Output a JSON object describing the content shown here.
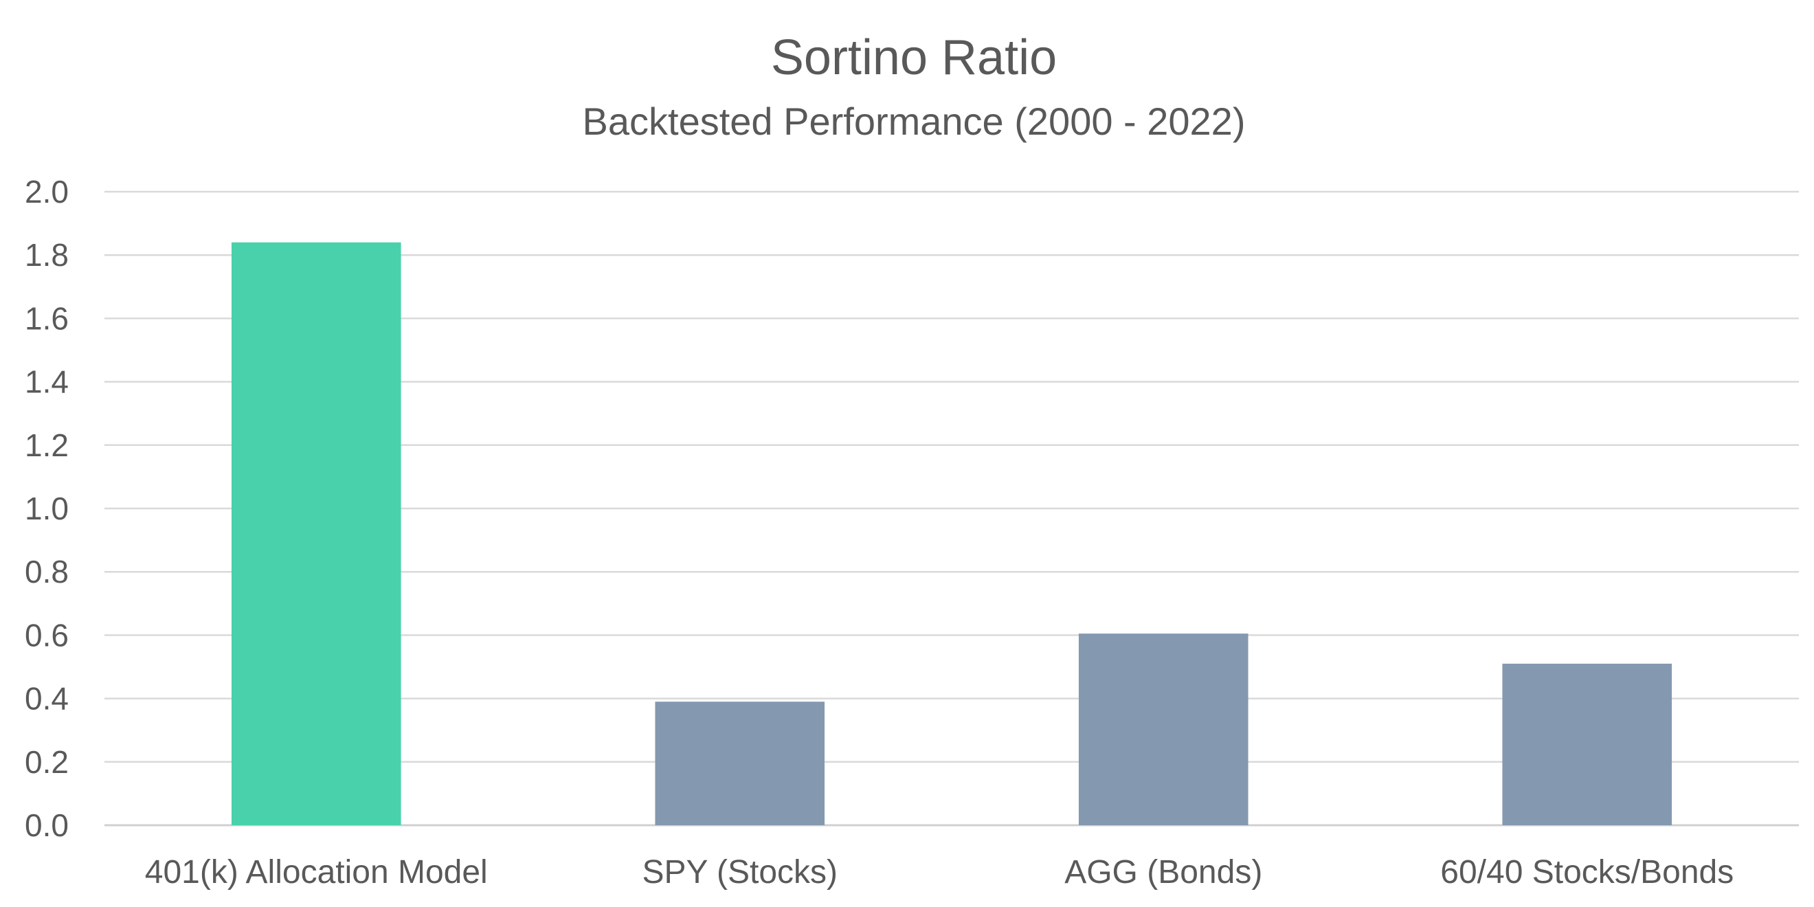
{
  "chart_data": {
    "type": "bar",
    "title": "Sortino Ratio",
    "subtitle": "Backtested Performance (2000 - 2022)",
    "xlabel": "",
    "ylabel": "",
    "categories": [
      "401(k) Allocation Model",
      "SPY (Stocks)",
      "AGG (Bonds)",
      "60/40 Stocks/Bonds"
    ],
    "values": [
      1.84,
      0.39,
      0.605,
      0.51
    ],
    "ylim": [
      0,
      2.0
    ],
    "yticks": [
      "0.0",
      "0.2",
      "0.4",
      "0.6",
      "0.8",
      "1.0",
      "1.2",
      "1.4",
      "1.6",
      "1.8",
      "2.0"
    ],
    "grid": true,
    "legend": "none",
    "colors": {
      "highlight": "#48d1ab",
      "default": "#8498b0",
      "text": "#595959",
      "grid": "#d9d9d9"
    },
    "bar_colors": [
      "highlight",
      "default",
      "default",
      "default"
    ]
  }
}
